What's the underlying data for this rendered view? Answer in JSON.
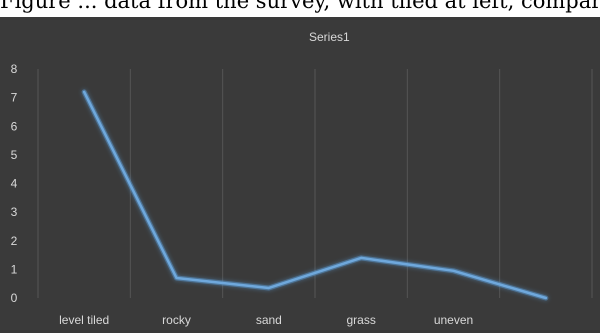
{
  "top_text": "Figure ... data from the survey, with tiled at left, comparative surface by ... ",
  "chart_data": {
    "type": "line",
    "categories": [
      "level tiled",
      "rocky",
      "sand",
      "grass",
      "uneven",
      ""
    ],
    "series": [
      {
        "name": "Series1",
        "values": [
          7.2,
          0.7,
          0.35,
          1.4,
          0.95,
          0.0
        ]
      }
    ],
    "ylim": [
      0,
      8
    ],
    "yticks": [
      0,
      1,
      2,
      3,
      4,
      5,
      6,
      7,
      8
    ],
    "grid": "vertical",
    "legend": "top-center",
    "colors": {
      "background": "#3a3a3a",
      "line": "#6fa8dc",
      "glow": "#5b9bd5",
      "grid": "#555555",
      "text": "#d9d9d9"
    }
  }
}
